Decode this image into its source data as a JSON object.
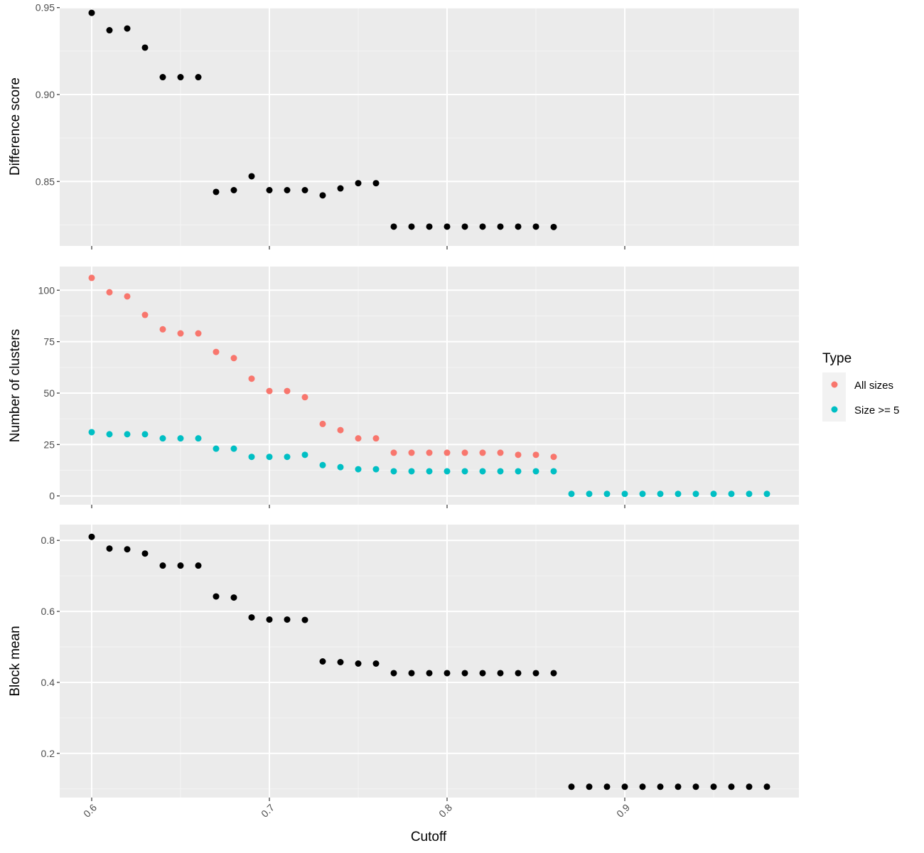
{
  "colors": {
    "panel_bg": "#EBEBEB",
    "grid_major": "#FFFFFF",
    "grid_minor": "#F4F4F4",
    "tick": "#333333",
    "tick_label": "#4D4D4D",
    "point_black": "#000000",
    "all_sizes": "#F8766D",
    "size_ge_5": "#00BFC4"
  },
  "chart_data": {
    "type": "scatter",
    "xlabel": "Cutoff",
    "x_ticks": [
      0.6,
      0.7,
      0.8,
      0.9
    ],
    "x_tick_labels": [
      "0.6",
      "0.7",
      "0.8",
      "0.9"
    ],
    "xlim": [
      0.582,
      0.998
    ],
    "legend": {
      "title": "Type",
      "placement": "right",
      "entries": [
        {
          "label": "All sizes",
          "color": "#F8766D"
        },
        {
          "label": "Size >= 5",
          "color": "#00BFC4"
        }
      ]
    },
    "panels": [
      {
        "ylabel": "Difference score",
        "ylim": [
          0.8129,
          0.9503
        ],
        "y_ticks": [
          0.85,
          0.9,
          0.95
        ],
        "y_tick_labels": [
          "0.85",
          "0.90",
          "0.95"
        ],
        "y_minor": [
          0.825,
          0.875,
          0.925
        ],
        "series": [
          {
            "color": "#000000",
            "x": [
              0.6,
              0.61,
              0.62,
              0.63,
              0.64,
              0.65,
              0.66,
              0.67,
              0.68,
              0.69,
              0.7,
              0.71,
              0.72,
              0.73,
              0.74,
              0.75,
              0.76,
              0.77,
              0.78,
              0.79,
              0.8,
              0.81,
              0.82,
              0.83,
              0.84,
              0.85,
              0.86
            ],
            "y": [
              0.947,
              0.937,
              0.938,
              0.927,
              0.91,
              0.91,
              0.91,
              0.844,
              0.845,
              0.853,
              0.845,
              0.845,
              0.845,
              0.842,
              0.846,
              0.849,
              0.849,
              0.824,
              0.824,
              0.824,
              0.824,
              0.824,
              0.824,
              0.824,
              0.824,
              0.824,
              0.8238
            ]
          }
        ]
      },
      {
        "ylabel": "Number of clusters",
        "ylim": [
          -4.25,
          111.5
        ],
        "y_ticks": [
          0,
          25,
          50,
          75,
          100
        ],
        "y_tick_labels": [
          "0",
          "25",
          "50",
          "75",
          "100"
        ],
        "y_minor": [
          12.5,
          37.5,
          62.5,
          87.5
        ],
        "series": [
          {
            "name": "All sizes",
            "color": "#F8766D",
            "x": [
              0.6,
              0.61,
              0.62,
              0.63,
              0.64,
              0.65,
              0.66,
              0.67,
              0.68,
              0.69,
              0.7,
              0.71,
              0.72,
              0.73,
              0.74,
              0.75,
              0.76,
              0.77,
              0.78,
              0.79,
              0.8,
              0.81,
              0.82,
              0.83,
              0.84,
              0.85,
              0.86
            ],
            "y": [
              106,
              99,
              97,
              88,
              81,
              79,
              79,
              70,
              67,
              57,
              51,
              51,
              48,
              35,
              32,
              28,
              28,
              21,
              21,
              21,
              21,
              21,
              21,
              21,
              20,
              20,
              19
            ]
          },
          {
            "name": "Size >= 5",
            "color": "#00BFC4",
            "x": [
              0.6,
              0.61,
              0.62,
              0.63,
              0.64,
              0.65,
              0.66,
              0.67,
              0.68,
              0.69,
              0.7,
              0.71,
              0.72,
              0.73,
              0.74,
              0.75,
              0.76,
              0.77,
              0.78,
              0.79,
              0.8,
              0.81,
              0.82,
              0.83,
              0.84,
              0.85,
              0.86
            ],
            "y": [
              31,
              30,
              30,
              30,
              28,
              28,
              28,
              23,
              23,
              19,
              19,
              19,
              20,
              15,
              14,
              13,
              13,
              12,
              12,
              12,
              12,
              12,
              12,
              12,
              12,
              12,
              12
            ]
          },
          {
            "color": "#00BFC4",
            "x": [
              0.87,
              0.88,
              0.89,
              0.9,
              0.91,
              0.92,
              0.93,
              0.94,
              0.95,
              0.96,
              0.97,
              0.98
            ],
            "y": [
              1,
              1,
              1,
              1,
              1,
              1,
              1,
              1,
              1,
              1,
              1,
              1
            ]
          }
        ]
      },
      {
        "ylabel": "Block mean",
        "ylim": [
          0.0755,
          0.8445
        ],
        "y_ticks": [
          0.2,
          0.4,
          0.6,
          0.8
        ],
        "y_tick_labels": [
          "0.2",
          "0.4",
          "0.6",
          "0.8"
        ],
        "y_minor": [
          0.1,
          0.3,
          0.5,
          0.7
        ],
        "series": [
          {
            "color": "#000000",
            "x": [
              0.6,
              0.61,
              0.62,
              0.63,
              0.64,
              0.65,
              0.66,
              0.67,
              0.68,
              0.69,
              0.7,
              0.71,
              0.72,
              0.73,
              0.74,
              0.75,
              0.76,
              0.77,
              0.78,
              0.79,
              0.8,
              0.81,
              0.82,
              0.83,
              0.84,
              0.85,
              0.86,
              0.87,
              0.88,
              0.89,
              0.9,
              0.91,
              0.92,
              0.93,
              0.94,
              0.95,
              0.96,
              0.97,
              0.98
            ],
            "y": [
              0.81,
              0.777,
              0.775,
              0.763,
              0.729,
              0.729,
              0.729,
              0.642,
              0.639,
              0.583,
              0.577,
              0.577,
              0.576,
              0.459,
              0.457,
              0.453,
              0.453,
              0.426,
              0.426,
              0.426,
              0.426,
              0.426,
              0.426,
              0.426,
              0.426,
              0.426,
              0.426,
              0.106,
              0.106,
              0.106,
              0.106,
              0.106,
              0.106,
              0.106,
              0.106,
              0.106,
              0.106,
              0.106,
              0.106
            ]
          }
        ]
      }
    ]
  }
}
